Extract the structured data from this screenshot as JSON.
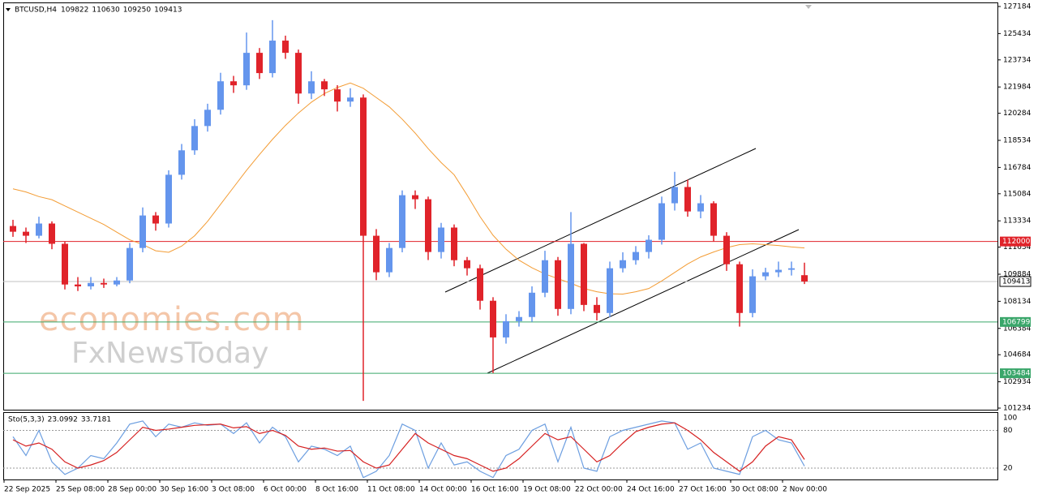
{
  "chart_data": {
    "type": "candlestick",
    "symbol": "BTCUSD,H4",
    "watermark": [
      "economies.com",
      "FxNewsToday"
    ],
    "open": [
      113000,
      112630,
      112370,
      113160,
      111850,
      109220,
      109100,
      109320,
      109220,
      109480,
      111580,
      113680,
      113160,
      116310,
      117890,
      119460,
      120510,
      122350,
      122090,
      124190,
      122880,
      124980,
      124190,
      121560,
      122350,
      121830,
      121040,
      121300,
      112370,
      110010,
      111580,
      114990,
      114730,
      111320,
      112900,
      110790,
      110270,
      108170,
      105800,
      106850,
      107120,
      108690,
      110790,
      107640,
      111850,
      107900,
      107380,
      110270,
      110790,
      111320,
      112110,
      114470,
      115520,
      113940,
      114470,
      112370,
      110530,
      107380,
      109750,
      110010,
      110170,
      109822
    ],
    "high": [
      113400,
      112900,
      113600,
      113300,
      112000,
      109700,
      109700,
      109600,
      109700,
      111900,
      114200,
      113900,
      116600,
      118300,
      119900,
      120900,
      122900,
      122700,
      125500,
      124500,
      126300,
      125300,
      124400,
      123000,
      122500,
      122100,
      121900,
      121500,
      112800,
      111900,
      115300,
      115300,
      114900,
      113200,
      113100,
      111000,
      110500,
      108400,
      107300,
      107500,
      109100,
      111400,
      111000,
      113900,
      111900,
      108400,
      110700,
      111300,
      111700,
      112400,
      114900,
      116500,
      116000,
      115000,
      114600,
      112600,
      110700,
      110200,
      110300,
      110700,
      110700,
      110630
    ],
    "low": [
      112300,
      111900,
      112200,
      111500,
      108900,
      108800,
      108900,
      109000,
      109100,
      109300,
      111300,
      112700,
      112900,
      116000,
      117600,
      119100,
      120200,
      121600,
      121800,
      122500,
      122600,
      123800,
      120900,
      121200,
      121400,
      120400,
      120700,
      101700,
      109500,
      109700,
      111300,
      114100,
      110800,
      110900,
      110400,
      109800,
      107600,
      103500,
      105400,
      106500,
      106800,
      108400,
      107200,
      107300,
      107500,
      106900,
      107100,
      110000,
      110500,
      110900,
      111800,
      114000,
      113600,
      113500,
      112000,
      110100,
      106500,
      107100,
      109500,
      109700,
      109800,
      109250
    ],
    "close": [
      112630,
      112370,
      113160,
      111850,
      109220,
      109100,
      109320,
      109220,
      109480,
      111580,
      113680,
      113160,
      116310,
      117890,
      119460,
      120510,
      122350,
      122090,
      124190,
      122880,
      124980,
      124190,
      121560,
      122350,
      121830,
      121040,
      121300,
      112370,
      110010,
      111580,
      114990,
      114730,
      111320,
      112900,
      110790,
      110270,
      108170,
      105800,
      106850,
      107120,
      108690,
      110790,
      107640,
      111850,
      107900,
      107380,
      110270,
      110790,
      111320,
      112110,
      114470,
      115520,
      113940,
      114470,
      112370,
      110530,
      107380,
      109750,
      110010,
      110170,
      110270,
      109413
    ],
    "up_color": "#6495ed",
    "down_color": "#e0232a",
    "ma": {
      "color": "#f39c34",
      "values": [
        115400,
        115200,
        114900,
        114700,
        114300,
        113900,
        113500,
        113100,
        112600,
        112110,
        111800,
        111400,
        111300,
        111700,
        112370,
        113300,
        114400,
        115500,
        116600,
        117620,
        118600,
        119500,
        120300,
        121000,
        121560,
        121950,
        122240,
        121900,
        121300,
        120700,
        119900,
        119000,
        118000,
        117100,
        116310,
        115000,
        113600,
        112400,
        111500,
        110790,
        110300,
        109900,
        109600,
        109300,
        108960,
        108750,
        108620,
        108600,
        108750,
        108960,
        109450,
        110000,
        110550,
        111000,
        111320,
        111600,
        111800,
        111850,
        111800,
        111740,
        111650,
        111580
      ]
    },
    "levels": [
      {
        "value": 112000,
        "color": "#e0232a"
      },
      {
        "value": 106799,
        "color": "#3aa66a"
      },
      {
        "value": 103484,
        "color": "#3aa66a"
      }
    ],
    "ylim": [
      101130,
      127446
    ],
    "yticks": [
      127184,
      125434,
      123734,
      121984,
      120284,
      118534,
      116784,
      115084,
      113334,
      111634,
      109884,
      108134,
      106384,
      104684,
      102934,
      101234
    ],
    "xticks": [
      "22 Sep 2025",
      "25 Sep 08:00",
      "28 Sep 00:00",
      "30 Sep 16:00",
      "3 Oct 08:00",
      "6 Oct 00:00",
      "8 Oct 16:00",
      "11 Oct 08:00",
      "14 Oct 00:00",
      "16 Oct 16:00",
      "19 Oct 08:00",
      "22 Oct 00:00",
      "24 Oct 16:00",
      "27 Oct 16:00",
      "30 Oct 08:00",
      "2 Nov 00:00"
    ],
    "stochastic": {
      "name": "Sto(5,3,3)",
      "ylim": [
        0,
        100
      ],
      "yticks": [
        100,
        80,
        20
      ],
      "series": [
        {
          "color": "#6c9ee0",
          "values": [
            70,
            40,
            80,
            30,
            10,
            20,
            40,
            35,
            60,
            90,
            95,
            70,
            90,
            85,
            92,
            88,
            90,
            75,
            92,
            60,
            85,
            70,
            30,
            55,
            50,
            40,
            55,
            5,
            15,
            40,
            90,
            80,
            20,
            60,
            25,
            30,
            15,
            5,
            40,
            50,
            80,
            90,
            30,
            85,
            20,
            15,
            70,
            80,
            85,
            90,
            95,
            92,
            50,
            60,
            20,
            15,
            10,
            70,
            80,
            65,
            60,
            23.0992
          ]
        },
        {
          "color": "#d62020",
          "values": [
            65,
            55,
            60,
            50,
            30,
            20,
            25,
            32,
            45,
            65,
            85,
            80,
            82,
            85,
            88,
            89,
            90,
            84,
            86,
            75,
            80,
            72,
            55,
            50,
            52,
            47,
            48,
            30,
            20,
            25,
            50,
            75,
            60,
            50,
            40,
            35,
            25,
            15,
            20,
            35,
            55,
            75,
            65,
            70,
            50,
            30,
            40,
            60,
            78,
            85,
            90,
            92,
            80,
            65,
            45,
            30,
            15,
            30,
            55,
            70,
            65,
            33.7181
          ]
        }
      ]
    }
  }
}
